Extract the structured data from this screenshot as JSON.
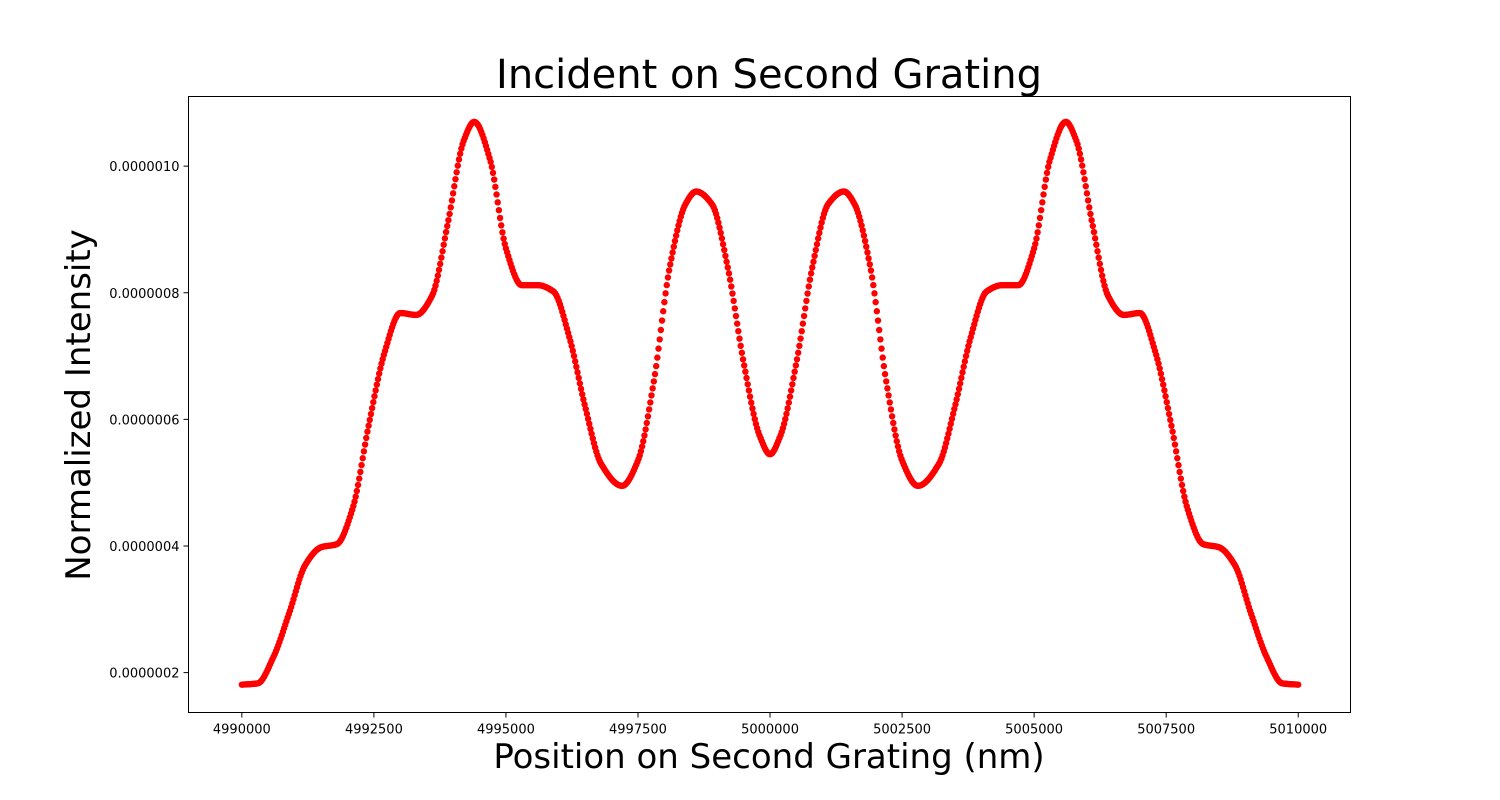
{
  "chart_data": {
    "type": "scatter",
    "title": "Incident on Second Grating",
    "xlabel": "Position on Second Grating (nm)",
    "ylabel": "Normalized Intensity",
    "xlim": [
      4988990,
      5010990
    ],
    "ylim": [
      1.37e-07,
      1.11e-06
    ],
    "x_ticks": [
      4990000,
      4992500,
      4995000,
      4997500,
      5000000,
      5002500,
      5005000,
      5007500,
      5010000
    ],
    "x_tick_labels": [
      "4990000",
      "4992500",
      "4995000",
      "4997500",
      "5000000",
      "5002500",
      "5005000",
      "5007500",
      "5010000"
    ],
    "y_ticks": [
      2e-07,
      4e-07,
      6e-07,
      8e-07,
      1e-06
    ],
    "y_tick_labels": [
      "0.0000002",
      "0.0000004",
      "0.0000006",
      "0.0000008",
      "0.0000010"
    ],
    "grid": false,
    "marker_color": "#ff0000",
    "series": [
      {
        "x": [
          4990000,
          4990300,
          4990600,
          4990900,
          4991200,
          4991500,
          4991800,
          4992100,
          4992400,
          4992700,
          4993000,
          4993300,
          4993600,
          4993900,
          4994200,
          4994400,
          4994700,
          4995000,
          4995300,
          4995600,
          4995900,
          4996200,
          4996500,
          4996800,
          4997200,
          4997500,
          4997800,
          4998100,
          4998400,
          4998600,
          4998900,
          4999200,
          4999500,
          4999800,
          5000000,
          5000200,
          5000500,
          5000800,
          5001100,
          5001400,
          5001600,
          5001900,
          5002200,
          5002500,
          5002800,
          5003200,
          5003500,
          5003800,
          5004100,
          5004400,
          5004700,
          5005000,
          5005300,
          5005600,
          5005800,
          5006100,
          5006400,
          5006700,
          5007000,
          5007300,
          5007600,
          5007900,
          5008200,
          5008500,
          5008800,
          5009100,
          5009400,
          5009700,
          5010000
        ],
        "y": [
          1.81e-07,
          1.83e-07,
          2.25e-07,
          2.95e-07,
          3.7e-07,
          3.98e-07,
          4.03e-07,
          4.6e-07,
          5.9e-07,
          7.05e-07,
          7.68e-07,
          7.65e-07,
          7.95e-07,
          9.1e-07,
          1.04e-06,
          1.07e-06,
          1.01e-06,
          8.7e-07,
          8.12e-07,
          8.12e-07,
          8.02e-07,
          7.3e-07,
          6.2e-07,
          5.3e-07,
          4.95e-07,
          5.35e-07,
          6.6e-07,
          8.4e-07,
          9.4e-07,
          9.6e-07,
          9.4e-07,
          8.4e-07,
          6.9e-07,
          5.75e-07,
          5.45e-07,
          5.75e-07,
          6.9e-07,
          8.4e-07,
          9.4e-07,
          9.6e-07,
          9.4e-07,
          8.4e-07,
          6.6e-07,
          5.35e-07,
          4.95e-07,
          5.3e-07,
          6.2e-07,
          7.3e-07,
          8.02e-07,
          8.12e-07,
          8.12e-07,
          8.7e-07,
          1.01e-06,
          1.07e-06,
          1.04e-06,
          9.1e-07,
          7.95e-07,
          7.65e-07,
          7.68e-07,
          7.05e-07,
          5.9e-07,
          4.6e-07,
          4.03e-07,
          3.98e-07,
          3.7e-07,
          2.95e-07,
          2.25e-07,
          1.83e-07,
          1.81e-07
        ]
      }
    ]
  }
}
